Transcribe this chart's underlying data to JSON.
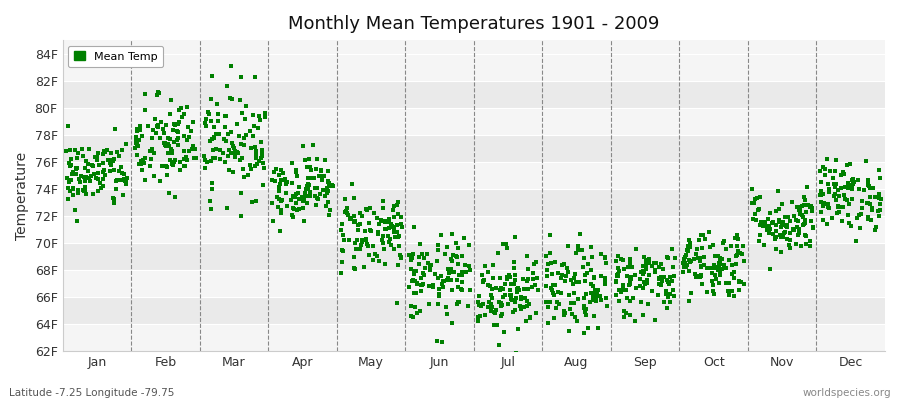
{
  "title": "Monthly Mean Temperatures 1901 - 2009",
  "ylabel": "Temperature",
  "bottom_left": "Latitude -7.25 Longitude -79.75",
  "bottom_right": "worldspecies.org",
  "dot_color": "#008000",
  "bg_color": "#FFFFFF",
  "ylim_min": 62,
  "ylim_max": 85,
  "ytick_values": [
    62,
    64,
    66,
    68,
    70,
    72,
    74,
    76,
    78,
    80,
    82,
    84
  ],
  "ytick_labels": [
    "62F",
    "64F",
    "66F",
    "68F",
    "70F",
    "72F",
    "74F",
    "76F",
    "78F",
    "80F",
    "82F",
    "84F"
  ],
  "months": [
    "Jan",
    "Feb",
    "Mar",
    "Apr",
    "May",
    "Jun",
    "Jul",
    "Aug",
    "Sep",
    "Oct",
    "Nov",
    "Dec"
  ],
  "month_centers": [
    0.5,
    1.5,
    2.5,
    3.5,
    4.5,
    5.5,
    6.5,
    7.5,
    8.5,
    9.5,
    10.5,
    11.5
  ],
  "legend_label": "Mean Temp",
  "seed": 42,
  "n_years": 109,
  "monthly_means": [
    75.1,
    77.2,
    77.5,
    74.1,
    70.8,
    67.3,
    66.5,
    66.5,
    67.2,
    68.5,
    71.5,
    73.5
  ],
  "monthly_stds": [
    1.3,
    1.8,
    2.0,
    1.2,
    1.5,
    1.6,
    1.6,
    1.6,
    1.3,
    1.3,
    1.2,
    1.3
  ],
  "stripe_colors": [
    "#F5F5F5",
    "#EAEAEA"
  ],
  "dash_color": "#888888",
  "grid_color": "#FFFFFF"
}
